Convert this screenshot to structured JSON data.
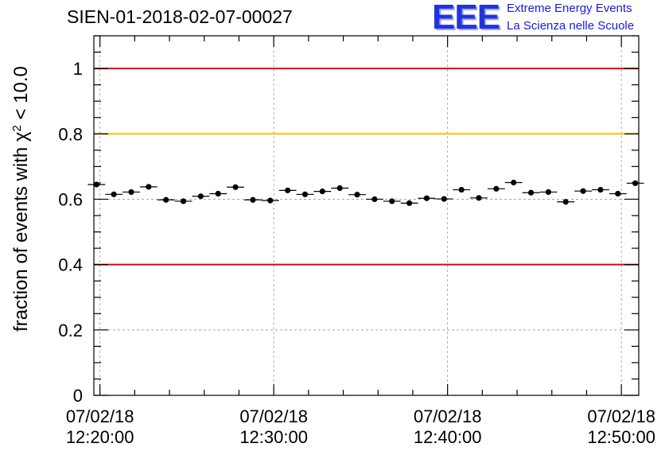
{
  "chart_data": {
    "type": "scatter",
    "title": "SIEN-01-2018-02-07-00027",
    "ylabel_prefix": "fraction of events with ",
    "ylabel_chi": "χ",
    "ylabel_sup": "2",
    "ylabel_suffix": " < 10.0",
    "xlabel": "",
    "ylim": [
      0,
      1.1
    ],
    "xlim_minutes": [
      19.65,
      51.0
    ],
    "y_ticks": [
      {
        "value": 0,
        "label": "0"
      },
      {
        "value": 0.2,
        "label": "0.2"
      },
      {
        "value": 0.4,
        "label": "0.4"
      },
      {
        "value": 0.6,
        "label": "0.6"
      },
      {
        "value": 0.8,
        "label": "0.8"
      },
      {
        "value": 1.0,
        "label": "1"
      }
    ],
    "x_ticks": [
      {
        "minute": 20,
        "date": "07/02/18",
        "time": "12:20:00"
      },
      {
        "minute": 30,
        "date": "07/02/18",
        "time": "12:30:00"
      },
      {
        "minute": 40,
        "date": "07/02/18",
        "time": "12:40:00"
      },
      {
        "minute": 50,
        "date": "07/02/18",
        "time": "12:50:00"
      }
    ],
    "reference_lines": [
      {
        "name": "upper-red-line",
        "y": 1.0,
        "color": "#e00000"
      },
      {
        "name": "yellow-line",
        "y": 0.8,
        "color": "#ffc000"
      },
      {
        "name": "lower-red-line",
        "y": 0.4,
        "color": "#e00000"
      }
    ],
    "series": [
      {
        "name": "fraction",
        "bin_width_minutes": 1.0,
        "x_minutes": [
          19.8,
          20.8,
          21.8,
          22.8,
          23.8,
          24.8,
          25.8,
          26.8,
          27.8,
          28.8,
          29.8,
          30.8,
          31.8,
          32.8,
          33.8,
          34.8,
          35.8,
          36.8,
          37.8,
          38.8,
          39.8,
          40.8,
          41.8,
          42.8,
          43.8,
          44.8,
          45.8,
          46.8,
          47.8,
          48.8,
          49.8,
          50.8
        ],
        "y": [
          0.645,
          0.615,
          0.622,
          0.638,
          0.598,
          0.594,
          0.609,
          0.617,
          0.637,
          0.598,
          0.596,
          0.627,
          0.615,
          0.624,
          0.634,
          0.614,
          0.6,
          0.594,
          0.588,
          0.603,
          0.601,
          0.629,
          0.604,
          0.632,
          0.651,
          0.62,
          0.622,
          0.592,
          0.625,
          0.629,
          0.617,
          0.649
        ],
        "y_err": 0.008
      }
    ],
    "grid": true
  },
  "logo": {
    "text": "EEE",
    "line1": "Extreme Energy Events",
    "line2": "La Scienza nelle Scuole"
  },
  "colors": {
    "axis": "#000000",
    "grid": "#999999",
    "marker": "#000000",
    "logo": "#1a1ae0"
  }
}
